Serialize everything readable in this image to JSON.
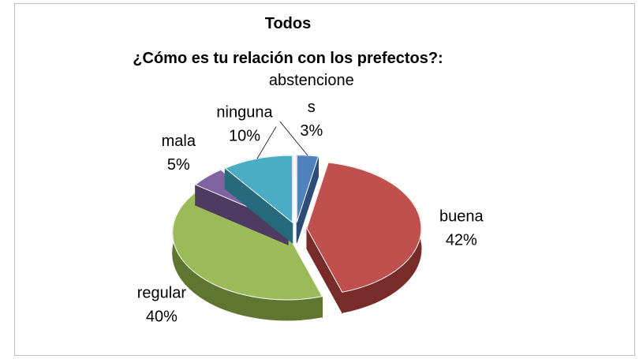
{
  "chart_data": {
    "type": "pie3d",
    "title": "Todos",
    "subtitle": "¿Cómo es tu relación  con los prefectos?:",
    "categories": [
      "abstenciones",
      "buena",
      "regular",
      "mala",
      "ninguna"
    ],
    "values": [
      3,
      42,
      40,
      5,
      10
    ],
    "value_labels": [
      "3%",
      "42%",
      "40%",
      "5%",
      "10%"
    ],
    "colors": [
      "#4f81bd",
      "#c0504d",
      "#9bbb59",
      "#8064a2",
      "#4bacc6"
    ],
    "dark_colors": [
      "#2c4d75",
      "#772c2a",
      "#5f7530",
      "#4d3b62",
      "#276a7c"
    ]
  }
}
